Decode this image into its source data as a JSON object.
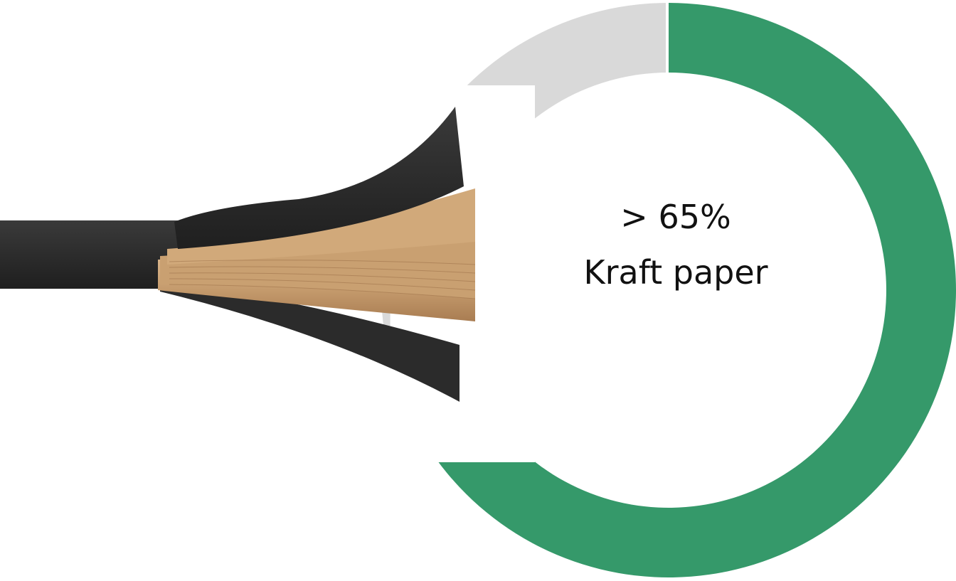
{
  "chart_data": {
    "type": "pie",
    "style": "donut",
    "slices": [
      {
        "label": "Kraft paper",
        "value": 65,
        "color": "#35996a"
      },
      {
        "label": "",
        "value": 35,
        "color": "#d9d9d9"
      }
    ],
    "start_angle_deg": 0,
    "direction": "clockwise",
    "center_text": {
      "value": "> 65%",
      "label": "Kraft paper"
    }
  },
  "photo": {
    "subject": "layered-laminate-strip",
    "colors": {
      "outer_layer": "#2b2b2b",
      "inner_layers": "#c49a6c"
    }
  }
}
